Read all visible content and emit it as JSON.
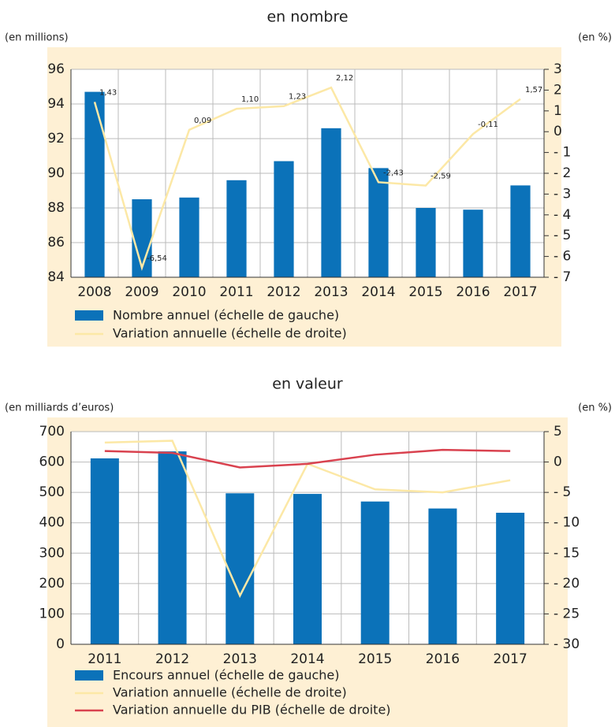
{
  "chart_data": [
    {
      "type": "combo",
      "title": "en nombre",
      "y_label": "(en millions)",
      "y2_label": "(en %)",
      "categories": [
        "2008",
        "2009",
        "2010",
        "2011",
        "2012",
        "2013",
        "2014",
        "2015",
        "2016",
        "2017"
      ],
      "ylim": [
        84,
        96
      ],
      "yticks": [
        84,
        86,
        88,
        90,
        92,
        94,
        96
      ],
      "y2lim": [
        -7,
        3
      ],
      "y2ticks": [
        {
          "value": -7,
          "label": "- 7"
        },
        {
          "value": -6,
          "label": "- 6"
        },
        {
          "value": -5,
          "label": "- 5"
        },
        {
          "value": -4,
          "label": "- 4"
        },
        {
          "value": -3,
          "label": "- 3"
        },
        {
          "value": -2,
          "label": "- 2"
        },
        {
          "value": -1,
          "label": "- 1"
        },
        0,
        1,
        2,
        3
      ],
      "grid": true,
      "series": [
        {
          "name": "Nombre annuel (échelle de gauche)",
          "kind": "bar",
          "color": "#0b72b9",
          "values": [
            94.7,
            88.5,
            88.6,
            89.6,
            90.7,
            92.6,
            90.3,
            88.0,
            87.9,
            89.3
          ]
        },
        {
          "name": "Variation annuelle (échelle de droite)",
          "kind": "line",
          "axis": "y2",
          "color": "#fce8a6",
          "values": [
            1.43,
            -6.54,
            0.09,
            1.1,
            1.23,
            2.12,
            -2.43,
            -2.59,
            -0.11,
            1.57
          ],
          "value_labels": [
            "1,43",
            "-6,54",
            "0,09",
            "1,10",
            "1,23",
            "2,12",
            "-2,43",
            "-2,59",
            "-0,11",
            "1,57"
          ]
        }
      ]
    },
    {
      "type": "combo",
      "title": "en valeur",
      "y_label": "(en milliards d’euros)",
      "y2_label": "(en %)",
      "categories": [
        "2011",
        "2012",
        "2013",
        "2014",
        "2015",
        "2016",
        "2017"
      ],
      "ylim": [
        0,
        700
      ],
      "yticks": [
        0,
        100,
        200,
        300,
        400,
        500,
        600,
        700
      ],
      "y2lim": [
        -30,
        5
      ],
      "y2ticks": [
        {
          "value": -30,
          "label": "- 30"
        },
        {
          "value": -25,
          "label": "- 25"
        },
        {
          "value": -20,
          "label": "- 20"
        },
        {
          "value": -15,
          "label": "- 15"
        },
        {
          "value": -10,
          "label": "- 10"
        },
        {
          "value": -5,
          "label": "- 5"
        },
        0,
        5
      ],
      "grid": true,
      "series": [
        {
          "name": "Encours annuel (échelle de gauche)",
          "kind": "bar",
          "color": "#0b72b9",
          "values": [
            612,
            635,
            497,
            495,
            470,
            447,
            433
          ]
        },
        {
          "name": "Variation annuelle (échelle de droite)",
          "kind": "line",
          "axis": "y2",
          "color": "#fce8a6",
          "values": [
            3.2,
            3.5,
            -22.0,
            -0.3,
            -4.5,
            -5.0,
            -3.0
          ]
        },
        {
          "name": "Variation annuelle du PIB (échelle de droite)",
          "kind": "line",
          "axis": "y2",
          "color": "#d9424f",
          "values": [
            1.8,
            1.5,
            -0.9,
            -0.3,
            1.2,
            2.0,
            1.8
          ]
        }
      ]
    }
  ]
}
